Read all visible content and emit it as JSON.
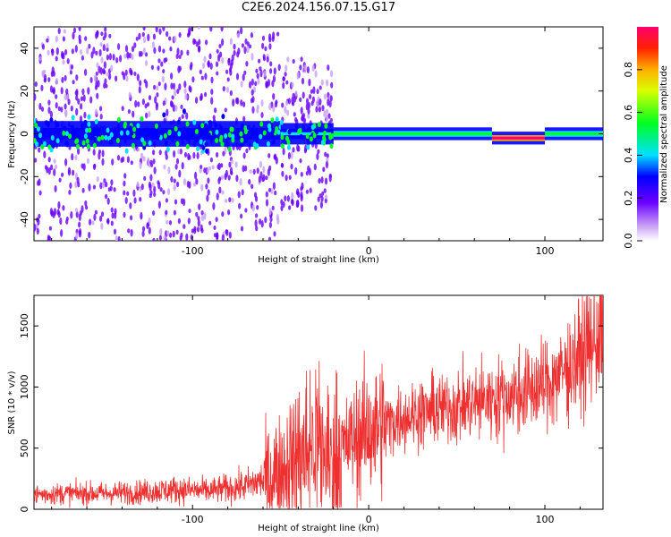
{
  "title": "C2E6.2024.156.07.15.G17",
  "colors": {
    "snr_line": "#ee3030",
    "core_band": "#6a00ff",
    "scatter": "#c9a8f0",
    "grid": "#dddddd"
  },
  "chart_data": [
    {
      "type": "heatmap",
      "xlabel": "Height of straight line (km)",
      "ylabel": "Frequency (Hz)",
      "xlim": [
        -190,
        133
      ],
      "ylim": [
        -50,
        50
      ],
      "xticks": [
        -100,
        0,
        100
      ],
      "yticks": [
        -40,
        -20,
        0,
        20,
        40
      ],
      "colorbar": {
        "label": "Normalized spectral amplitude",
        "range": [
          0.0,
          1.0
        ],
        "ticks": [
          0.0,
          0.2,
          0.4,
          0.6,
          0.8
        ],
        "colormap": "rainbow (purple-blue-cyan-green-yellow-red-magenta)"
      },
      "bands": [
        {
          "x_range": [
            -190,
            -50
          ],
          "center_hz": 0,
          "halfwidth_hz": 6,
          "peak_amplitude": 0.3,
          "scatter_extent_hz": 50
        },
        {
          "x_range": [
            -50,
            -20
          ],
          "center_hz": 0,
          "halfwidth_hz": 5,
          "peak_amplitude": 0.35,
          "scatter_extent_hz": 35
        },
        {
          "x_range": [
            -20,
            70
          ],
          "center_hz": 0,
          "halfwidth_hz": 3,
          "peak_amplitude": 0.5,
          "scatter_extent_hz": 0
        },
        {
          "x_range": [
            70,
            100
          ],
          "center_hz": -2,
          "halfwidth_hz": 3,
          "peak_amplitude": 0.95,
          "scatter_extent_hz": 0
        },
        {
          "x_range": [
            100,
            133
          ],
          "center_hz": 0,
          "halfwidth_hz": 3,
          "peak_amplitude": 0.5,
          "scatter_extent_hz": 0
        }
      ]
    },
    {
      "type": "line",
      "xlabel": "Height of straight line (km)",
      "ylabel": "SNR (10 * v/v)",
      "xlim": [
        -190,
        133
      ],
      "ylim": [
        0,
        1750
      ],
      "xticks": [
        -100,
        0,
        100
      ],
      "yticks": [
        0,
        500,
        1000,
        1500
      ],
      "series": [
        {
          "x": [
            -190,
            -170,
            -150,
            -130,
            -110,
            -90,
            -70,
            -60,
            -50,
            -40,
            -30,
            -25,
            -20,
            -15,
            -10,
            -5,
            0,
            10,
            20,
            40,
            60,
            80,
            100,
            110,
            120,
            133
          ],
          "y": [
            120,
            130,
            130,
            140,
            160,
            150,
            190,
            240,
            320,
            420,
            540,
            460,
            400,
            480,
            560,
            600,
            640,
            700,
            760,
            820,
            870,
            930,
            1010,
            1120,
            1250,
            1450
          ]
        }
      ]
    }
  ]
}
